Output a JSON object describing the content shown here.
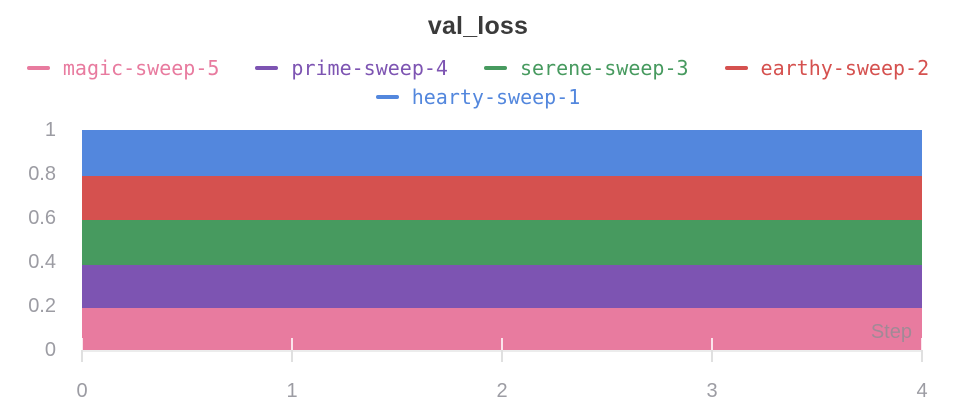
{
  "title": "val_loss",
  "legend": {
    "items": [
      {
        "label": "magic-sweep-5",
        "color": "#E87B9F"
      },
      {
        "label": "prime-sweep-4",
        "color": "#7D54B2"
      },
      {
        "label": "serene-sweep-3",
        "color": "#479A5F"
      },
      {
        "label": "earthy-sweep-2",
        "color": "#D5514F"
      },
      {
        "label": "hearty-sweep-1",
        "color": "#5387DD"
      }
    ]
  },
  "axes": {
    "x": {
      "label": "Step",
      "ticks": [
        "0",
        "1",
        "2",
        "3",
        "4"
      ],
      "min": 0,
      "max": 4
    },
    "y": {
      "ticks": [
        "0",
        "0.2",
        "0.4",
        "0.6",
        "0.8",
        "1"
      ],
      "min": 0,
      "max": 1
    }
  },
  "chart_data": {
    "type": "area",
    "title": "val_loss",
    "xlabel": "Step",
    "ylabel": "",
    "x": [
      0,
      1,
      2,
      3,
      4
    ],
    "series": [
      {
        "name": "hearty-sweep-1",
        "color": "#5387DD",
        "values": [
          1.0,
          1.0,
          1.0,
          1.0,
          1.0
        ]
      },
      {
        "name": "earthy-sweep-2",
        "color": "#D5514F",
        "values": [
          0.79,
          0.79,
          0.79,
          0.79,
          0.79
        ]
      },
      {
        "name": "serene-sweep-3",
        "color": "#479A5F",
        "values": [
          0.59,
          0.59,
          0.59,
          0.59,
          0.59
        ]
      },
      {
        "name": "prime-sweep-4",
        "color": "#7D54B2",
        "values": [
          0.385,
          0.385,
          0.385,
          0.385,
          0.385
        ]
      },
      {
        "name": "magic-sweep-5",
        "color": "#E87B9F",
        "values": [
          0.19,
          0.19,
          0.19,
          0.19,
          0.19
        ]
      }
    ],
    "xlim": [
      0,
      4
    ],
    "ylim": [
      0,
      1
    ],
    "grid": "short white tick nubs at x ticks only, no horizontal gridlines",
    "legend_position": "top-center, two rows",
    "note": "constant-value filled areas overlap largest-behind, rendering as solid horizontal bands"
  },
  "colors": {
    "background": "#ffffff",
    "title_text": "#3a3a3a",
    "axis_text": "#9c9ca3",
    "step_label": "#8e8e94",
    "axis_line": "#ececec",
    "tick_mark": "#e0e0e0"
  }
}
